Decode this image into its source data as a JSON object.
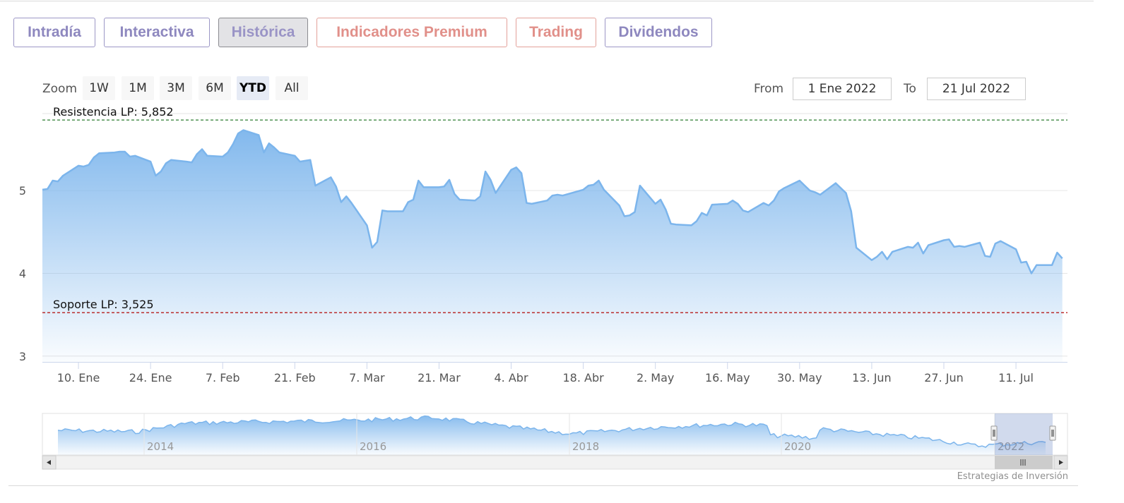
{
  "tabs": [
    {
      "label": "Intradía",
      "style": "blue",
      "active": false
    },
    {
      "label": "Interactiva",
      "style": "blue",
      "active": false
    },
    {
      "label": "Histórica",
      "style": "blue",
      "active": true
    },
    {
      "label": "Indicadores Premium",
      "style": "red",
      "active": false
    },
    {
      "label": "Trading",
      "style": "red",
      "active": false
    },
    {
      "label": "Dividendos",
      "style": "blue",
      "active": false
    }
  ],
  "range_selector": {
    "zoom_label": "Zoom",
    "buttons": [
      "1W",
      "1M",
      "3M",
      "6M",
      "YTD",
      "All"
    ],
    "selected": "YTD",
    "from_label": "From",
    "from_value": "1 Ene 2022",
    "to_label": "To",
    "to_value": "21 Jul 2022"
  },
  "credits": "Estrategias de Inversión",
  "colors": {
    "series": "#7cb5ec",
    "resistance": "#2e7d32",
    "support": "#b71c1c"
  },
  "chart_data": {
    "type": "area",
    "title": "",
    "xlabel": "",
    "ylabel": "",
    "x_tick_labels": [
      "10. Ene",
      "24. Ene",
      "7. Feb",
      "21. Feb",
      "7. Mar",
      "21. Mar",
      "4. Abr",
      "18. Abr",
      "2. May",
      "16. May",
      "30. May",
      "13. Jun",
      "27. Jun",
      "11. Jul"
    ],
    "y_ticks": [
      3,
      4,
      5
    ],
    "ylim": [
      2.93,
      5.93
    ],
    "xlim": [
      "2022-01-03",
      "2022-07-21"
    ],
    "grid": true,
    "series": [
      {
        "values": [
          [
            "2022-01-03",
            5.01
          ],
          [
            "2022-01-04",
            5.02
          ],
          [
            "2022-01-05",
            5.12
          ],
          [
            "2022-01-06",
            5.11
          ],
          [
            "2022-01-07",
            5.18
          ],
          [
            "2022-01-10",
            5.3
          ],
          [
            "2022-01-11",
            5.29
          ],
          [
            "2022-01-12",
            5.31
          ],
          [
            "2022-01-13",
            5.4
          ],
          [
            "2022-01-14",
            5.45
          ],
          [
            "2022-01-17",
            5.46
          ],
          [
            "2022-01-18",
            5.47
          ],
          [
            "2022-01-19",
            5.47
          ],
          [
            "2022-01-20",
            5.41
          ],
          [
            "2022-01-21",
            5.42
          ],
          [
            "2022-01-24",
            5.35
          ],
          [
            "2022-01-25",
            5.18
          ],
          [
            "2022-01-26",
            5.23
          ],
          [
            "2022-01-27",
            5.33
          ],
          [
            "2022-01-28",
            5.37
          ],
          [
            "2022-01-31",
            5.35
          ],
          [
            "2022-02-01",
            5.34
          ],
          [
            "2022-02-02",
            5.44
          ],
          [
            "2022-02-03",
            5.5
          ],
          [
            "2022-02-04",
            5.42
          ],
          [
            "2022-02-07",
            5.41
          ],
          [
            "2022-02-08",
            5.46
          ],
          [
            "2022-02-09",
            5.56
          ],
          [
            "2022-02-10",
            5.69
          ],
          [
            "2022-02-11",
            5.73
          ],
          [
            "2022-02-14",
            5.67
          ],
          [
            "2022-02-15",
            5.46
          ],
          [
            "2022-02-16",
            5.57
          ],
          [
            "2022-02-17",
            5.52
          ],
          [
            "2022-02-18",
            5.46
          ],
          [
            "2022-02-21",
            5.42
          ],
          [
            "2022-02-22",
            5.35
          ],
          [
            "2022-02-23",
            5.36
          ],
          [
            "2022-02-24",
            5.37
          ],
          [
            "2022-02-25",
            5.06
          ],
          [
            "2022-02-28",
            5.16
          ],
          [
            "2022-03-01",
            5.05
          ],
          [
            "2022-03-02",
            4.86
          ],
          [
            "2022-03-03",
            4.93
          ],
          [
            "2022-03-04",
            4.85
          ],
          [
            "2022-03-07",
            4.58
          ],
          [
            "2022-03-08",
            4.31
          ],
          [
            "2022-03-09",
            4.38
          ],
          [
            "2022-03-10",
            4.76
          ],
          [
            "2022-03-11",
            4.75
          ],
          [
            "2022-03-14",
            4.75
          ],
          [
            "2022-03-15",
            4.86
          ],
          [
            "2022-03-16",
            4.89
          ],
          [
            "2022-03-17",
            5.12
          ],
          [
            "2022-03-18",
            5.04
          ],
          [
            "2022-03-21",
            5.04
          ],
          [
            "2022-03-22",
            5.05
          ],
          [
            "2022-03-23",
            5.13
          ],
          [
            "2022-03-24",
            4.96
          ],
          [
            "2022-03-25",
            4.89
          ],
          [
            "2022-03-28",
            4.88
          ],
          [
            "2022-03-29",
            4.93
          ],
          [
            "2022-03-30",
            5.23
          ],
          [
            "2022-03-31",
            5.13
          ],
          [
            "2022-04-01",
            4.97
          ],
          [
            "2022-04-04",
            5.25
          ],
          [
            "2022-04-05",
            5.28
          ],
          [
            "2022-04-06",
            5.21
          ],
          [
            "2022-04-07",
            4.85
          ],
          [
            "2022-04-08",
            4.84
          ],
          [
            "2022-04-11",
            4.88
          ],
          [
            "2022-04-12",
            4.94
          ],
          [
            "2022-04-13",
            4.95
          ],
          [
            "2022-04-14",
            4.94
          ],
          [
            "2022-04-18",
            5.01
          ],
          [
            "2022-04-19",
            5.06
          ],
          [
            "2022-04-20",
            5.07
          ],
          [
            "2022-04-21",
            5.12
          ],
          [
            "2022-04-22",
            5.01
          ],
          [
            "2022-04-25",
            4.82
          ],
          [
            "2022-04-26",
            4.69
          ],
          [
            "2022-04-27",
            4.7
          ],
          [
            "2022-04-28",
            4.74
          ],
          [
            "2022-04-29",
            5.06
          ],
          [
            "2022-05-02",
            4.84
          ],
          [
            "2022-05-03",
            4.89
          ],
          [
            "2022-05-04",
            4.77
          ],
          [
            "2022-05-05",
            4.6
          ],
          [
            "2022-05-06",
            4.59
          ],
          [
            "2022-05-09",
            4.58
          ],
          [
            "2022-05-10",
            4.63
          ],
          [
            "2022-05-11",
            4.73
          ],
          [
            "2022-05-12",
            4.7
          ],
          [
            "2022-05-13",
            4.83
          ],
          [
            "2022-05-16",
            4.84
          ],
          [
            "2022-05-17",
            4.88
          ],
          [
            "2022-05-18",
            4.84
          ],
          [
            "2022-05-19",
            4.76
          ],
          [
            "2022-05-20",
            4.74
          ],
          [
            "2022-05-23",
            4.85
          ],
          [
            "2022-05-24",
            4.82
          ],
          [
            "2022-05-25",
            4.88
          ],
          [
            "2022-05-26",
            4.99
          ],
          [
            "2022-05-27",
            5.03
          ],
          [
            "2022-05-30",
            5.12
          ],
          [
            "2022-05-31",
            5.06
          ],
          [
            "2022-06-01",
            5.0
          ],
          [
            "2022-06-02",
            4.98
          ],
          [
            "2022-06-03",
            4.95
          ],
          [
            "2022-06-06",
            5.09
          ],
          [
            "2022-06-07",
            5.03
          ],
          [
            "2022-06-08",
            4.97
          ],
          [
            "2022-06-09",
            4.75
          ],
          [
            "2022-06-10",
            4.31
          ],
          [
            "2022-06-13",
            4.16
          ],
          [
            "2022-06-14",
            4.2
          ],
          [
            "2022-06-15",
            4.26
          ],
          [
            "2022-06-16",
            4.17
          ],
          [
            "2022-06-17",
            4.26
          ],
          [
            "2022-06-20",
            4.32
          ],
          [
            "2022-06-21",
            4.31
          ],
          [
            "2022-06-22",
            4.37
          ],
          [
            "2022-06-23",
            4.24
          ],
          [
            "2022-06-24",
            4.34
          ],
          [
            "2022-06-27",
            4.4
          ],
          [
            "2022-06-28",
            4.41
          ],
          [
            "2022-06-29",
            4.32
          ],
          [
            "2022-06-30",
            4.33
          ],
          [
            "2022-07-01",
            4.32
          ],
          [
            "2022-07-04",
            4.37
          ],
          [
            "2022-07-05",
            4.21
          ],
          [
            "2022-07-06",
            4.2
          ],
          [
            "2022-07-07",
            4.36
          ],
          [
            "2022-07-08",
            4.39
          ],
          [
            "2022-07-11",
            4.29
          ],
          [
            "2022-07-12",
            4.13
          ],
          [
            "2022-07-13",
            4.14
          ],
          [
            "2022-07-14",
            4.0
          ],
          [
            "2022-07-15",
            4.1
          ],
          [
            "2022-07-18",
            4.1
          ],
          [
            "2022-07-19",
            4.25
          ],
          [
            "2022-07-20",
            4.18
          ]
        ]
      }
    ],
    "plot_lines": [
      {
        "label": "Resistencia LP: 5,852",
        "value": 5.852,
        "style": "dashed"
      },
      {
        "label": "Soporte LP: 3,525",
        "value": 3.525,
        "style": "dashed"
      }
    ],
    "navigator": {
      "x_tick_labels": [
        "2014",
        "2016",
        "2018",
        "2020",
        "2022"
      ],
      "selected_range": [
        "2022-01-03",
        "2022-07-21"
      ]
    }
  }
}
